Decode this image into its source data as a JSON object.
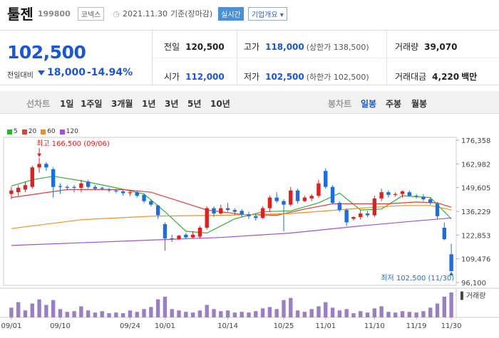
{
  "header": {
    "name": "툴젠",
    "code": "199800",
    "market": "코넥스",
    "date": "2021.11.30",
    "basis": "기준(장마감)",
    "live_badge": "실시간",
    "company_info": "기업개요"
  },
  "price": {
    "current": "102,500",
    "prev_label": "전일대비",
    "change": "18,000",
    "change_pct": "-14.94%",
    "prev_close_label": "전일",
    "prev_close": "120,500",
    "open_label": "시가",
    "open": "112,000",
    "high_label": "고가",
    "high": "118,000",
    "upper_limit": "(상한가 138,500)",
    "low_label": "저가",
    "low": "102,500",
    "lower_limit": "(하한가 102,500)",
    "volume_label": "거래량",
    "volume": "39,070",
    "amount_label": "거래대금",
    "amount": "4,220",
    "amount_unit": "백만"
  },
  "period_tabs": {
    "line_label": "선차트",
    "items": [
      "1일",
      "1주일",
      "3개월",
      "1년",
      "3년",
      "5년",
      "10년"
    ],
    "candle_label": "봉차트",
    "candle_items": [
      "일봉",
      "주봉",
      "월봉"
    ],
    "selected_candle": "일봉"
  },
  "colors": {
    "up": "#e02020",
    "down": "#1a6ee0",
    "ma5": "#2fb32f",
    "ma20": "#e0403a",
    "ma60": "#f09020",
    "ma120": "#a050d0",
    "volume": "#9a7fc8"
  },
  "chart_data": {
    "type": "candlestick",
    "legend": [
      "5",
      "20",
      "60",
      "120"
    ],
    "y_ticks": [
      "176,358",
      "162,982",
      "149,605",
      "136,229",
      "122,853",
      "109,476",
      "96,100"
    ],
    "ylim": [
      96100,
      176358
    ],
    "x_ticks": [
      "09/01",
      "09/10",
      "09/24",
      "10/01",
      "10/14",
      "10/25",
      "11/01",
      "11/10",
      "11/19",
      "11/30"
    ],
    "high_annotation": "최고 166,500 (09/06)",
    "low_annotation": "최저 102,500 (11/30)",
    "volume_label": "거래량",
    "candles": [
      {
        "o": 146000,
        "h": 150000,
        "l": 143000,
        "c": 148000
      },
      {
        "o": 147000,
        "h": 151000,
        "l": 145000,
        "c": 149500
      },
      {
        "o": 148500,
        "h": 153000,
        "l": 147000,
        "c": 151000
      },
      {
        "o": 150000,
        "h": 162000,
        "l": 149000,
        "c": 161000
      },
      {
        "o": 161000,
        "h": 166500,
        "l": 158000,
        "c": 163000
      },
      {
        "o": 163000,
        "h": 164000,
        "l": 159000,
        "c": 161000
      },
      {
        "o": 160000,
        "h": 161000,
        "l": 144000,
        "c": 150000
      },
      {
        "o": 150500,
        "h": 152000,
        "l": 146000,
        "c": 150000
      },
      {
        "o": 150000,
        "h": 151000,
        "l": 148000,
        "c": 149500
      },
      {
        "o": 150000,
        "h": 151000,
        "l": 147000,
        "c": 149500
      },
      {
        "o": 149500,
        "h": 154000,
        "l": 147000,
        "c": 152000
      },
      {
        "o": 153000,
        "h": 154000,
        "l": 149000,
        "c": 150000
      },
      {
        "o": 150000,
        "h": 151000,
        "l": 148000,
        "c": 149000
      },
      {
        "o": 149500,
        "h": 150000,
        "l": 148000,
        "c": 149000
      },
      {
        "o": 148500,
        "h": 149500,
        "l": 147000,
        "c": 148000
      },
      {
        "o": 148000,
        "h": 149000,
        "l": 146500,
        "c": 147500
      },
      {
        "o": 147500,
        "h": 148500,
        "l": 145000,
        "c": 146500
      },
      {
        "o": 146500,
        "h": 148000,
        "l": 145000,
        "c": 147000
      },
      {
        "o": 147000,
        "h": 148000,
        "l": 144000,
        "c": 145000
      },
      {
        "o": 145500,
        "h": 146500,
        "l": 141000,
        "c": 142000
      },
      {
        "o": 142000,
        "h": 143000,
        "l": 139000,
        "c": 140000
      },
      {
        "o": 139500,
        "h": 140000,
        "l": 132000,
        "c": 134000
      },
      {
        "o": 129000,
        "h": 130000,
        "l": 114000,
        "c": 121000
      },
      {
        "o": 121000,
        "h": 123000,
        "l": 119000,
        "c": 120500
      },
      {
        "o": 120500,
        "h": 123000,
        "l": 120000,
        "c": 122500
      },
      {
        "o": 123000,
        "h": 124000,
        "l": 120500,
        "c": 121500
      },
      {
        "o": 121500,
        "h": 125000,
        "l": 121000,
        "c": 123000
      },
      {
        "o": 122000,
        "h": 128000,
        "l": 121000,
        "c": 127000
      },
      {
        "o": 127000,
        "h": 139000,
        "l": 126000,
        "c": 138000
      },
      {
        "o": 138000,
        "h": 139000,
        "l": 133000,
        "c": 135000
      },
      {
        "o": 135000,
        "h": 140000,
        "l": 134500,
        "c": 138000
      },
      {
        "o": 138000,
        "h": 141000,
        "l": 136000,
        "c": 137000
      },
      {
        "o": 137000,
        "h": 138000,
        "l": 134000,
        "c": 136000
      },
      {
        "o": 136500,
        "h": 137500,
        "l": 133000,
        "c": 134500
      },
      {
        "o": 134500,
        "h": 136000,
        "l": 132000,
        "c": 133500
      },
      {
        "o": 133500,
        "h": 134500,
        "l": 131000,
        "c": 132500
      },
      {
        "o": 132500,
        "h": 139000,
        "l": 132000,
        "c": 138000
      },
      {
        "o": 138000,
        "h": 145000,
        "l": 136000,
        "c": 144000
      },
      {
        "o": 144000,
        "h": 147000,
        "l": 141000,
        "c": 142000
      },
      {
        "o": 142000,
        "h": 143000,
        "l": 125000,
        "c": 140000
      },
      {
        "o": 140000,
        "h": 150000,
        "l": 139000,
        "c": 148000
      },
      {
        "o": 148000,
        "h": 149000,
        "l": 140500,
        "c": 142000
      },
      {
        "o": 142000,
        "h": 145000,
        "l": 141500,
        "c": 144000
      },
      {
        "o": 143500,
        "h": 146000,
        "l": 142000,
        "c": 145000
      },
      {
        "o": 145000,
        "h": 154000,
        "l": 144000,
        "c": 152000
      },
      {
        "o": 159000,
        "h": 160500,
        "l": 149000,
        "c": 150000
      },
      {
        "o": 150000,
        "h": 151000,
        "l": 140500,
        "c": 141000
      },
      {
        "o": 141000,
        "h": 142000,
        "l": 136000,
        "c": 137000
      },
      {
        "o": 137000,
        "h": 138000,
        "l": 128000,
        "c": 130000
      },
      {
        "o": 132000,
        "h": 133500,
        "l": 131000,
        "c": 133000
      },
      {
        "o": 133000,
        "h": 137000,
        "l": 131500,
        "c": 135000
      },
      {
        "o": 135000,
        "h": 136500,
        "l": 133000,
        "c": 134000
      },
      {
        "o": 134000,
        "h": 145000,
        "l": 133000,
        "c": 143500
      },
      {
        "o": 143500,
        "h": 149000,
        "l": 142000,
        "c": 147000
      },
      {
        "o": 147000,
        "h": 148000,
        "l": 144000,
        "c": 145500
      },
      {
        "o": 145500,
        "h": 147000,
        "l": 144500,
        "c": 146000
      },
      {
        "o": 146000,
        "h": 148000,
        "l": 144000,
        "c": 147500
      },
      {
        "o": 147000,
        "h": 148000,
        "l": 144500,
        "c": 145000
      },
      {
        "o": 145000,
        "h": 146000,
        "l": 143500,
        "c": 144500
      },
      {
        "o": 144500,
        "h": 146000,
        "l": 142000,
        "c": 143000
      },
      {
        "o": 143000,
        "h": 144000,
        "l": 140000,
        "c": 141000
      },
      {
        "o": 140500,
        "h": 141500,
        "l": 132000,
        "c": 133500
      },
      {
        "o": 127000,
        "h": 130000,
        "l": 120000,
        "c": 120500
      },
      {
        "o": 112000,
        "h": 118000,
        "l": 102500,
        "c": 102500
      }
    ],
    "ma": {
      "ma5": [
        [
          0,
          150500
        ],
        [
          3,
          154000
        ],
        [
          6,
          156000
        ],
        [
          10,
          153500
        ],
        [
          15,
          149500
        ],
        [
          19,
          146000
        ],
        [
          22,
          136000
        ],
        [
          25,
          125000
        ],
        [
          28,
          124000
        ],
        [
          32,
          132000
        ],
        [
          36,
          136000
        ],
        [
          40,
          136500
        ],
        [
          44,
          141000
        ],
        [
          47,
          146500
        ],
        [
          50,
          137000
        ],
        [
          53,
          137500
        ],
        [
          56,
          145000
        ],
        [
          60,
          144000
        ],
        [
          63,
          132000
        ]
      ],
      "ma20": [
        [
          0,
          144000
        ],
        [
          8,
          148500
        ],
        [
          16,
          148500
        ],
        [
          20,
          147000
        ],
        [
          24,
          142000
        ],
        [
          28,
          137000
        ],
        [
          33,
          134500
        ],
        [
          38,
          134000
        ],
        [
          42,
          137500
        ],
        [
          46,
          140500
        ],
        [
          50,
          140500
        ],
        [
          54,
          140500
        ],
        [
          58,
          141500
        ],
        [
          61,
          141000
        ],
        [
          63,
          138500
        ]
      ],
      "ma60": [
        [
          0,
          126500
        ],
        [
          10,
          131500
        ],
        [
          20,
          133500
        ],
        [
          30,
          134000
        ],
        [
          40,
          135000
        ],
        [
          50,
          138000
        ],
        [
          56,
          139500
        ],
        [
          60,
          139500
        ],
        [
          63,
          137000
        ]
      ],
      "ma120": [
        [
          0,
          117000
        ],
        [
          10,
          118500
        ],
        [
          20,
          120000
        ],
        [
          30,
          121500
        ],
        [
          40,
          124000
        ],
        [
          50,
          128000
        ],
        [
          57,
          130500
        ],
        [
          63,
          132500
        ]
      ]
    },
    "volumes": [
      14,
      22,
      10,
      20,
      26,
      18,
      25,
      12,
      8,
      9,
      16,
      10,
      7,
      9,
      6,
      7,
      6,
      10,
      8,
      12,
      15,
      26,
      30,
      12,
      10,
      8,
      7,
      10,
      18,
      12,
      9,
      10,
      7,
      8,
      7,
      9,
      13,
      15,
      12,
      25,
      28,
      10,
      8,
      12,
      16,
      22,
      14,
      10,
      12,
      6,
      9,
      7,
      13,
      16,
      8,
      7,
      9,
      8,
      7,
      9,
      14,
      20,
      30,
      36
    ]
  }
}
